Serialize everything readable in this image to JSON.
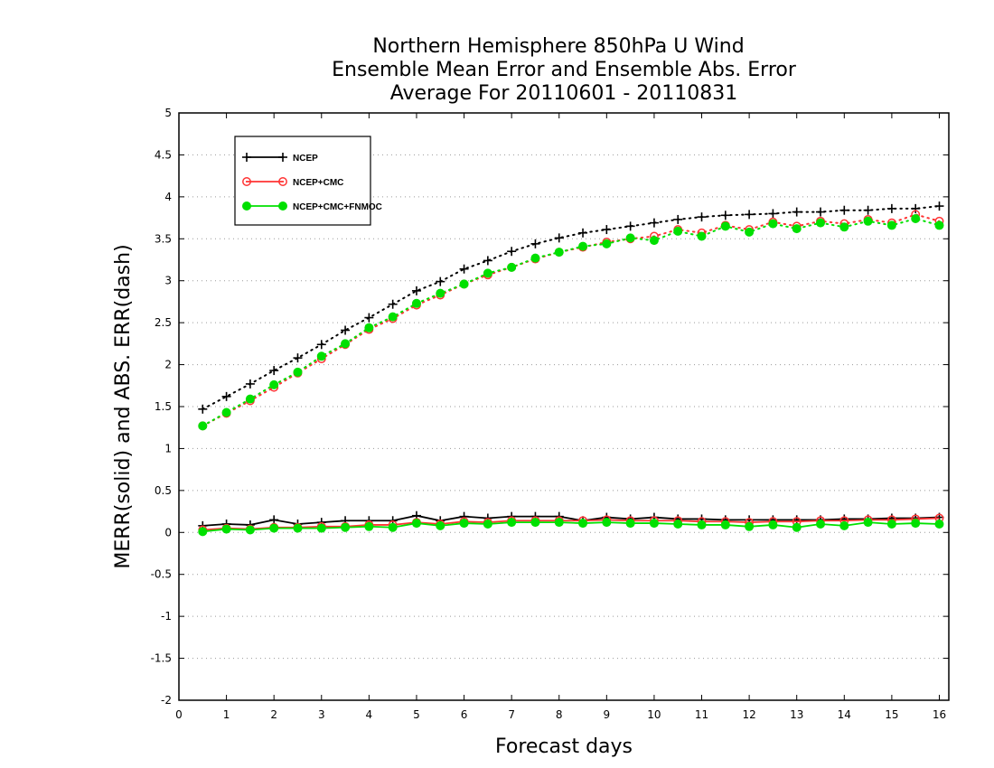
{
  "chart_data": {
    "type": "line",
    "title": [
      "Northern Hemisphere 850hPa U Wind",
      "Ensemble Mean Error and Ensemble Abs. Error",
      "Average For 20110601 - 20110831"
    ],
    "xlabel": "Forecast days",
    "ylabel": "MERR(solid) and ABS. ERR(dash)",
    "xlim": [
      0,
      16.2
    ],
    "ylim": [
      -2,
      5
    ],
    "xticks": [
      0,
      1,
      2,
      3,
      4,
      5,
      6,
      7,
      8,
      9,
      10,
      11,
      12,
      13,
      14,
      15,
      16
    ],
    "xtick_labels": [
      "0",
      "1",
      "2",
      "3",
      "4",
      "5",
      "6",
      "7",
      "8",
      "9",
      "10",
      "11",
      "12",
      "13",
      "14",
      "15",
      "16"
    ],
    "yticks": [
      -2,
      -1.5,
      -1,
      -0.5,
      0,
      0.5,
      1,
      1.5,
      2,
      2.5,
      3,
      3.5,
      4,
      4.5,
      5
    ],
    "ytick_labels": [
      "-2",
      "-1.5",
      "-1",
      "-0.5",
      "0",
      "0.5",
      "1",
      "1.5",
      "2",
      "2.5",
      "3",
      "3.5",
      "4",
      "4.5",
      "5"
    ],
    "grid": "horizontal dotted",
    "legend_position": "top-left",
    "x": [
      0.5,
      1,
      1.5,
      2,
      2.5,
      3,
      3.5,
      4,
      4.5,
      5,
      5.5,
      6,
      6.5,
      7,
      7.5,
      8,
      8.5,
      9,
      9.5,
      10,
      10.5,
      11,
      11.5,
      12,
      12.5,
      13,
      13.5,
      14,
      14.5,
      15,
      15.5,
      16
    ],
    "series": [
      {
        "name": "NCEP",
        "color": "#000000",
        "marker": "plus",
        "abs_err": [
          1.47,
          1.62,
          1.77,
          1.93,
          2.08,
          2.24,
          2.41,
          2.56,
          2.72,
          2.88,
          2.99,
          3.14,
          3.24,
          3.35,
          3.44,
          3.51,
          3.57,
          3.61,
          3.65,
          3.69,
          3.73,
          3.76,
          3.78,
          3.79,
          3.8,
          3.82,
          3.82,
          3.84,
          3.84,
          3.86,
          3.86,
          3.89
        ],
        "mean_err": [
          0.08,
          0.1,
          0.09,
          0.15,
          0.1,
          0.12,
          0.14,
          0.14,
          0.14,
          0.2,
          0.14,
          0.19,
          0.17,
          0.19,
          0.19,
          0.19,
          0.14,
          0.18,
          0.16,
          0.18,
          0.16,
          0.16,
          0.15,
          0.15,
          0.15,
          0.15,
          0.15,
          0.16,
          0.16,
          0.17,
          0.17,
          0.18
        ]
      },
      {
        "name": "NCEP+CMC",
        "color": "#ff3333",
        "marker": "open-circle",
        "abs_err": [
          1.27,
          1.42,
          1.57,
          1.73,
          1.9,
          2.07,
          2.24,
          2.42,
          2.55,
          2.71,
          2.83,
          2.96,
          3.07,
          3.16,
          3.26,
          3.34,
          3.4,
          3.46,
          3.5,
          3.53,
          3.61,
          3.57,
          3.66,
          3.61,
          3.7,
          3.65,
          3.71,
          3.68,
          3.73,
          3.69,
          3.79,
          3.71
        ],
        "mean_err": [
          0.03,
          0.05,
          0.04,
          0.06,
          0.06,
          0.07,
          0.07,
          0.09,
          0.09,
          0.12,
          0.1,
          0.13,
          0.12,
          0.14,
          0.14,
          0.14,
          0.14,
          0.15,
          0.14,
          0.14,
          0.14,
          0.13,
          0.13,
          0.12,
          0.13,
          0.13,
          0.14,
          0.14,
          0.15,
          0.15,
          0.16,
          0.17
        ]
      },
      {
        "name": "NCEP+CMC+FNMOC",
        "color": "#00e000",
        "marker": "filled-circle",
        "abs_err": [
          1.27,
          1.43,
          1.59,
          1.76,
          1.91,
          2.1,
          2.25,
          2.44,
          2.57,
          2.73,
          2.85,
          2.96,
          3.09,
          3.16,
          3.27,
          3.34,
          3.41,
          3.44,
          3.51,
          3.48,
          3.59,
          3.53,
          3.65,
          3.58,
          3.68,
          3.62,
          3.69,
          3.64,
          3.71,
          3.66,
          3.74,
          3.66
        ],
        "mean_err": [
          0.01,
          0.04,
          0.03,
          0.05,
          0.05,
          0.05,
          0.06,
          0.07,
          0.06,
          0.11,
          0.08,
          0.11,
          0.1,
          0.12,
          0.12,
          0.12,
          0.11,
          0.12,
          0.11,
          0.11,
          0.1,
          0.09,
          0.09,
          0.07,
          0.09,
          0.06,
          0.1,
          0.08,
          0.12,
          0.1,
          0.11,
          0.1
        ]
      }
    ]
  }
}
